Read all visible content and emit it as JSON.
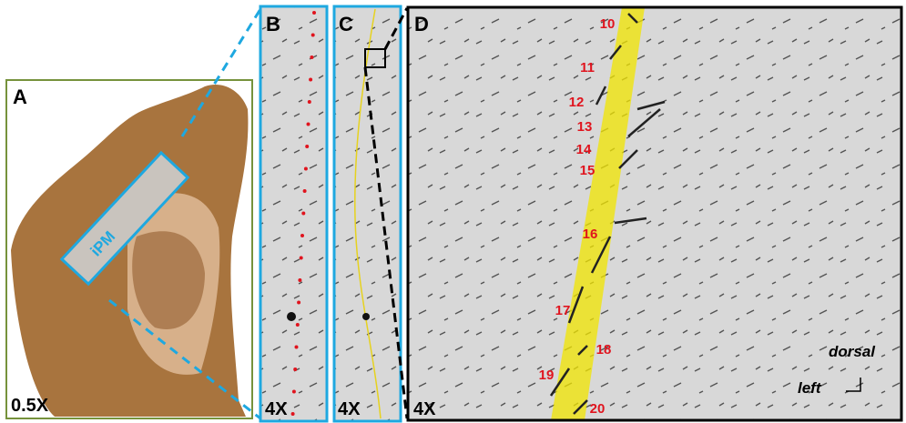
{
  "panels": [
    {
      "label": "A",
      "magnification": "0.5X",
      "region": "iPM"
    },
    {
      "label": "B",
      "magnification": "4X"
    },
    {
      "label": "C",
      "magnification": "4X"
    },
    {
      "label": "D",
      "magnification": "4X",
      "segments": [
        "10",
        "11",
        "12",
        "13",
        "14",
        "15",
        "16",
        "17",
        "18",
        "19",
        "20"
      ],
      "orientation": {
        "up": "dorsal",
        "side": "left"
      }
    }
  ]
}
